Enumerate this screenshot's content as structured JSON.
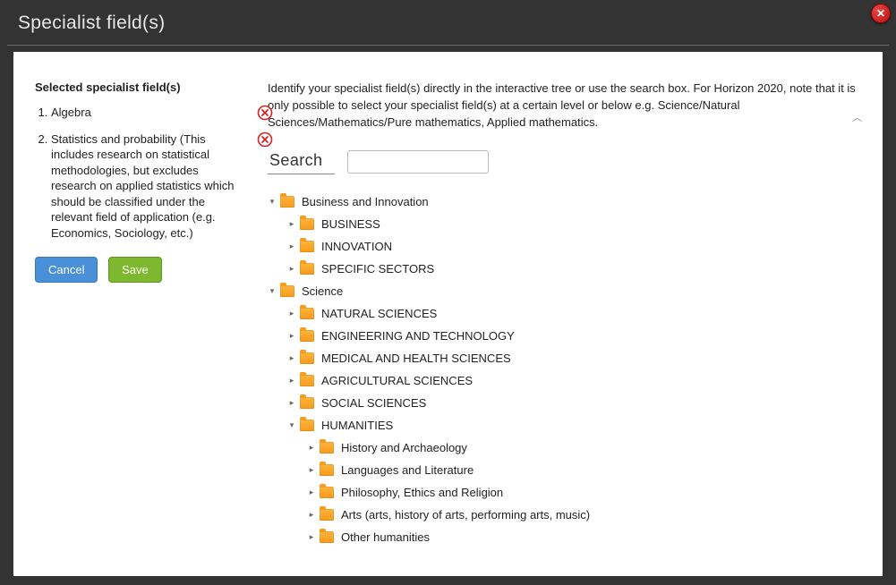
{
  "modal": {
    "title": "Specialist field(s)"
  },
  "left": {
    "heading": "Selected specialist field(s)",
    "items": [
      {
        "label": "Algebra"
      },
      {
        "label": "Statistics and probability (This includes research on statistical methodologies, but excludes research on applied statistics which should be classified under the relevant field of application (e.g. Economics, Sociology, etc.)"
      }
    ],
    "cancel": "Cancel",
    "save": "Save"
  },
  "right": {
    "instructions": "Identify your specialist field(s) directly in the interactive tree or use the search box. For Horizon 2020, note that it is only possible to select your specialist field(s) at a certain level or below e.g. Science/Natural Sciences/Mathematics/Pure mathematics, Applied mathematics.",
    "search_label": "Search",
    "search_value": ""
  },
  "tree": [
    {
      "level": 0,
      "toggle": "down",
      "label": "Business and Innovation"
    },
    {
      "level": 1,
      "toggle": "right",
      "label": "BUSINESS"
    },
    {
      "level": 1,
      "toggle": "right",
      "label": "INNOVATION"
    },
    {
      "level": 1,
      "toggle": "right",
      "label": "SPECIFIC SECTORS"
    },
    {
      "level": 0,
      "toggle": "down",
      "label": "Science"
    },
    {
      "level": 1,
      "toggle": "right",
      "label": "NATURAL SCIENCES"
    },
    {
      "level": 1,
      "toggle": "right",
      "label": "ENGINEERING AND TECHNOLOGY"
    },
    {
      "level": 1,
      "toggle": "right",
      "label": "MEDICAL AND HEALTH SCIENCES"
    },
    {
      "level": 1,
      "toggle": "right",
      "label": "AGRICULTURAL SCIENCES"
    },
    {
      "level": 1,
      "toggle": "right",
      "label": "SOCIAL SCIENCES"
    },
    {
      "level": 1,
      "toggle": "down",
      "label": "HUMANITIES"
    },
    {
      "level": 2,
      "toggle": "right",
      "label": "History and Archaeology"
    },
    {
      "level": 2,
      "toggle": "right",
      "label": "Languages and Literature"
    },
    {
      "level": 2,
      "toggle": "right",
      "label": "Philosophy, Ethics and Religion"
    },
    {
      "level": 2,
      "toggle": "right",
      "label": "Arts (arts, history of arts, performing arts, music)"
    },
    {
      "level": 2,
      "toggle": "right",
      "label": "Other humanities"
    }
  ],
  "colors": {
    "modal_bg": "#333333",
    "panel_bg": "#ffffff",
    "folder": "#f89a1c",
    "cancel_btn": "#4a90d9",
    "save_btn": "#7db82e",
    "close_btn": "#d42424",
    "remove_icon": "#d42424"
  }
}
